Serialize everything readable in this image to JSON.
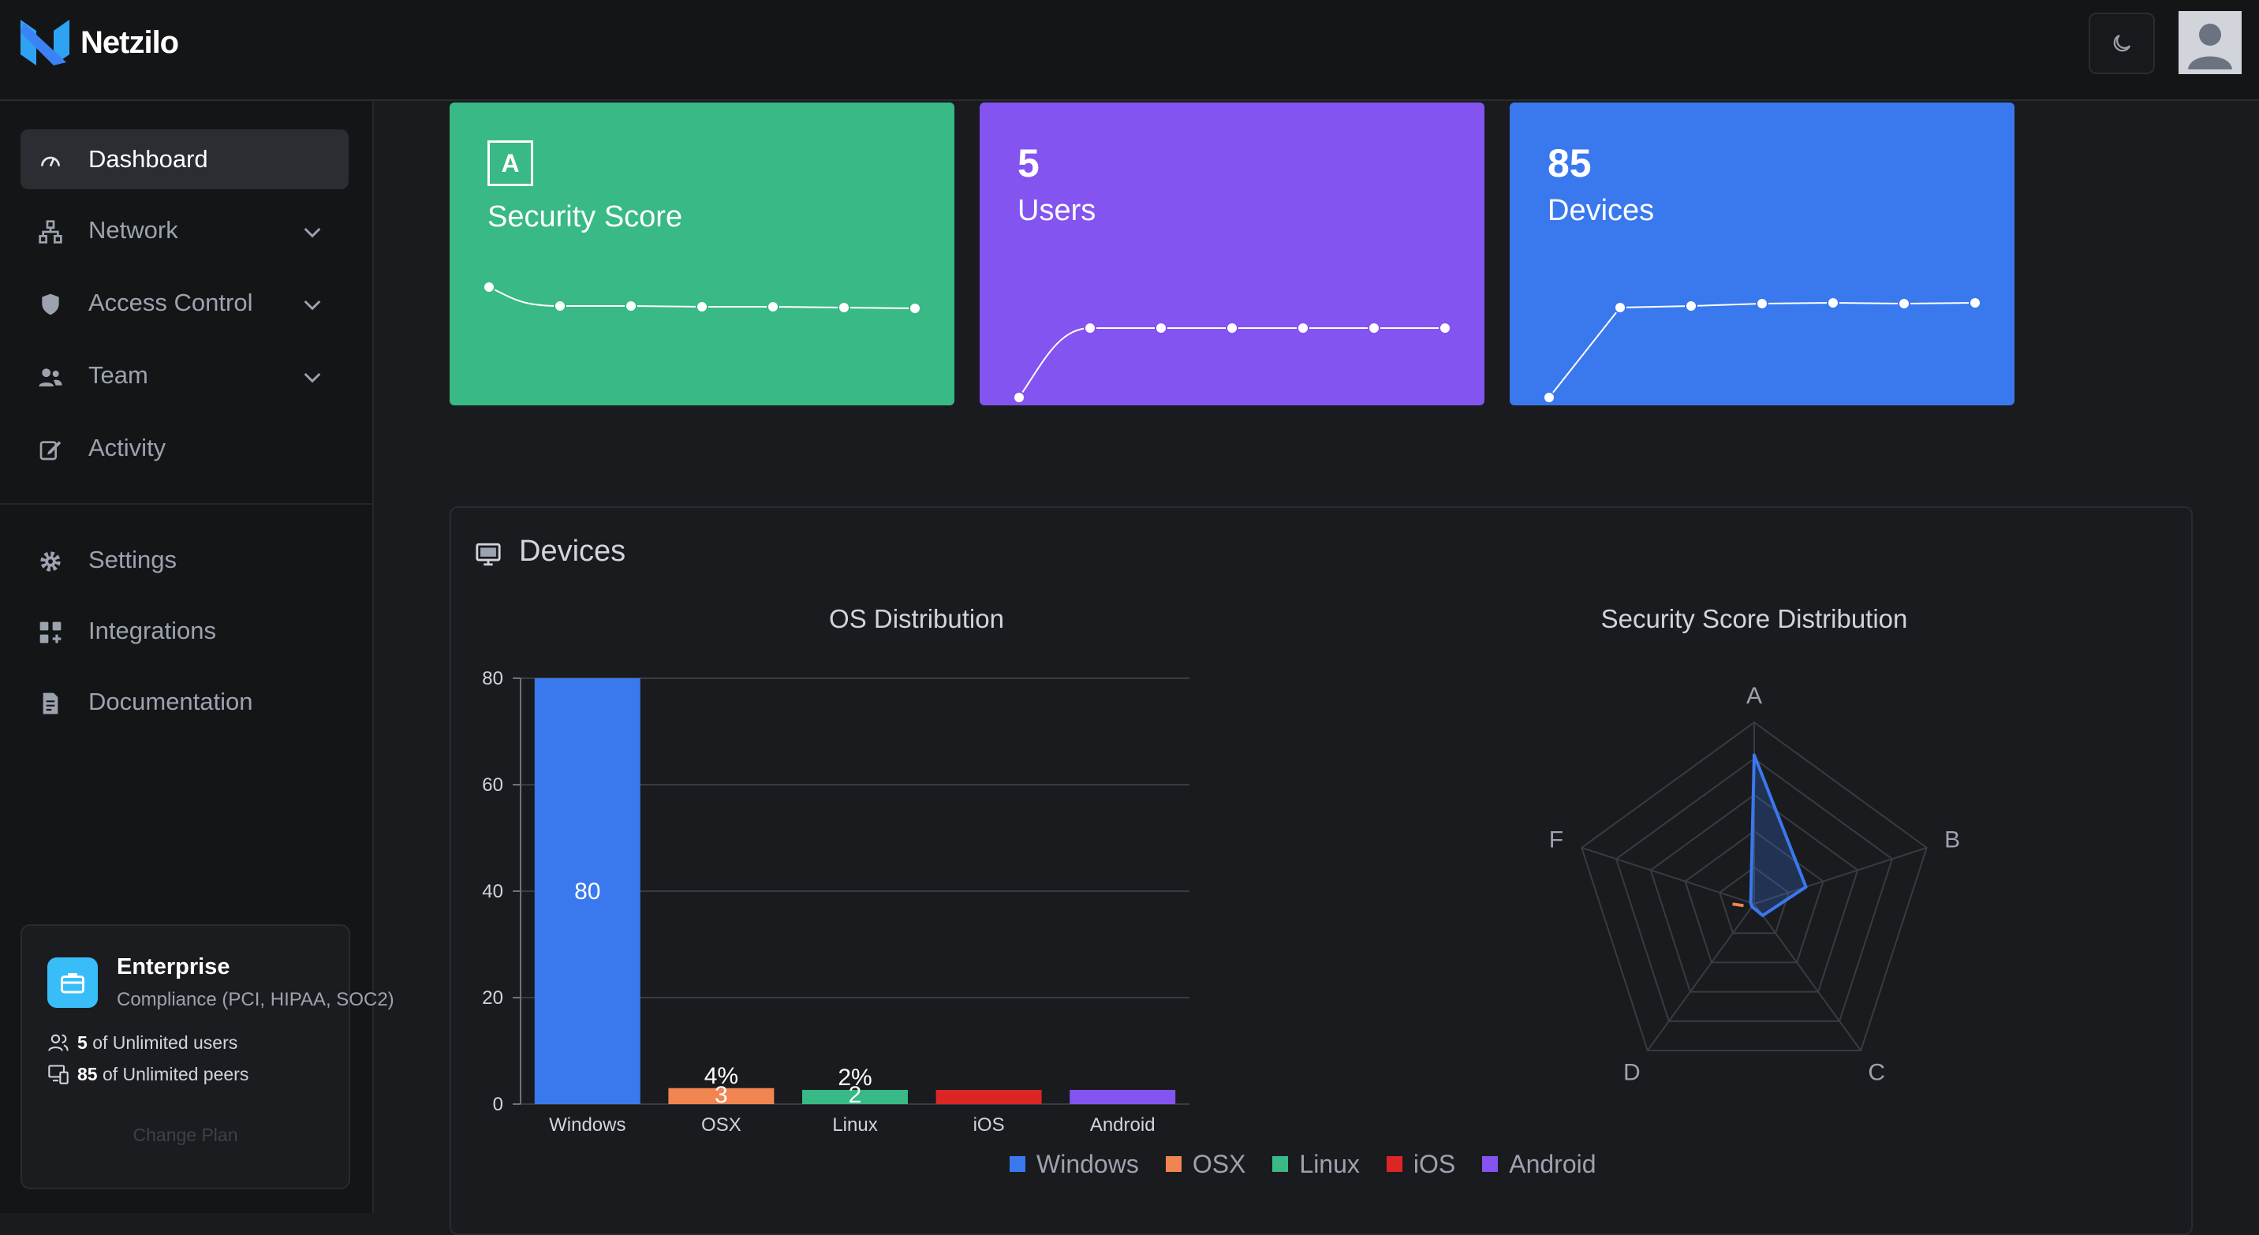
{
  "app": {
    "name": "Netzilo"
  },
  "sidebar": {
    "items": [
      {
        "label": "Dashboard",
        "icon": "gauge-icon",
        "active": true,
        "has_children": false
      },
      {
        "label": "Network",
        "icon": "network-icon",
        "active": false,
        "has_children": true
      },
      {
        "label": "Access Control",
        "icon": "shield-icon",
        "active": false,
        "has_children": true
      },
      {
        "label": "Team",
        "icon": "users-icon",
        "active": false,
        "has_children": true
      },
      {
        "label": "Activity",
        "icon": "edit-icon",
        "active": false,
        "has_children": false
      }
    ],
    "secondary_items": [
      {
        "label": "Settings",
        "icon": "gear-icon"
      },
      {
        "label": "Integrations",
        "icon": "puzzle-icon"
      },
      {
        "label": "Documentation",
        "icon": "document-icon"
      }
    ]
  },
  "plan": {
    "name": "Enterprise",
    "subtitle": "Compliance (PCI, HIPAA, SOC2)",
    "users_count": "5",
    "users_text": "of Unlimited users",
    "peers_count": "85",
    "peers_text": "of Unlimited peers",
    "change_label": "Change Plan"
  },
  "stats": {
    "security": {
      "grade": "A",
      "label": "Security Score",
      "color": "#38b985"
    },
    "users": {
      "value": "5",
      "label": "Users",
      "color": "#8354ef"
    },
    "devices": {
      "value": "85",
      "label": "Devices",
      "color": "#3a78ee"
    }
  },
  "devices_panel": {
    "title": "Devices"
  },
  "chart_data": [
    {
      "type": "bar",
      "title": "OS Distribution",
      "categories": [
        "Windows",
        "OSX",
        "Linux",
        "iOS",
        "Android"
      ],
      "values": [
        80,
        3,
        2,
        0,
        0
      ],
      "value_labels": [
        "80",
        "3",
        "2",
        "",
        ""
      ],
      "percent_labels": [
        "",
        "4%",
        "2%",
        "",
        ""
      ],
      "colors": [
        "#3a78ee",
        "#f08552",
        "#38b985",
        "#dc2626",
        "#8354ef"
      ],
      "ylim": [
        0,
        80
      ],
      "yticks": [
        "0",
        "20",
        "40",
        "60",
        "80"
      ],
      "legend": [
        "Windows",
        "OSX",
        "Linux",
        "iOS",
        "Android"
      ],
      "legend_position": "bottom",
      "grid": true
    },
    {
      "type": "radar",
      "title": "Security Score Distribution",
      "axes": [
        "A",
        "B",
        "C",
        "D",
        "F"
      ],
      "max": 100,
      "series": [
        {
          "values": [
            82,
            30,
            8,
            2,
            2
          ],
          "color": "#3a78ee"
        }
      ]
    }
  ]
}
